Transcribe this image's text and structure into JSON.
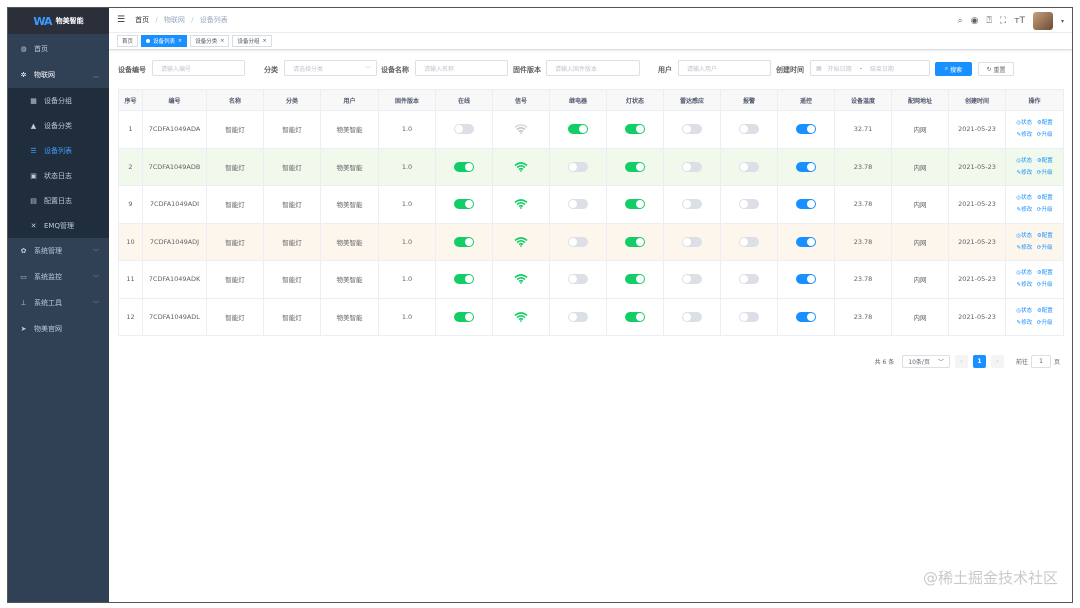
{
  "app": {
    "logo_text": "物美智能"
  },
  "sidebar": {
    "items": [
      {
        "label": "首页",
        "icon": "dashboard-icon"
      },
      {
        "label": "物联网",
        "icon": "gear-icon"
      },
      {
        "label": "系统管理",
        "icon": "gear-icon"
      },
      {
        "label": "系统监控",
        "icon": "monitor-icon"
      },
      {
        "label": "系统工具",
        "icon": "tool-icon"
      },
      {
        "label": "物美官网",
        "icon": "send-icon"
      }
    ],
    "sub_items": [
      {
        "label": "设备分组"
      },
      {
        "label": "设备分类"
      },
      {
        "label": "设备列表"
      },
      {
        "label": "状态日志"
      },
      {
        "label": "配置日志"
      },
      {
        "label": "EMQ管理"
      }
    ]
  },
  "breadcrumb": [
    "首页",
    "物联网",
    "设备列表"
  ],
  "tags": [
    {
      "label": "首页"
    },
    {
      "label": "设备列表"
    },
    {
      "label": "设备分类"
    },
    {
      "label": "设备分组"
    }
  ],
  "search": {
    "device_no_label": "设备编号",
    "device_no_placeholder": "请输入编号",
    "category_label": "分类",
    "category_placeholder": "请选择分类",
    "device_name_label": "设备名称",
    "device_name_placeholder": "请输入名称",
    "firmware_label": "固件版本",
    "firmware_placeholder": "请输入固件版本",
    "user_label": "用户",
    "user_placeholder": "请输入用户",
    "created_label": "创建时间",
    "start_placeholder": "开始日期",
    "range_sep": "-",
    "end_placeholder": "结束日期",
    "search_button": "搜索",
    "reset_button": "重置"
  },
  "table": {
    "headers": [
      "序号",
      "编号",
      "名称",
      "分类",
      "用户",
      "固件版本",
      "在线",
      "信号",
      "继电器",
      "灯状态",
      "雷达感应",
      "报警",
      "遥控",
      "设备温度",
      "配网地址",
      "创建时间",
      "操作"
    ],
    "rows": [
      {
        "seq": "1",
        "no": "7CDFA1049ADA",
        "name": "智能灯",
        "cat": "智能灯",
        "user": "物美智能",
        "fw": "1.0",
        "online": false,
        "signal": "weak",
        "relay": true,
        "light": true,
        "radar": false,
        "alarm": false,
        "remote": true,
        "temp": "32.71",
        "net": "内网",
        "created": "2021-05-23",
        "style": ""
      },
      {
        "seq": "2",
        "no": "7CDFA1049ADB",
        "name": "智能灯",
        "cat": "智能灯",
        "user": "物美智能",
        "fw": "1.0",
        "online": true,
        "signal": "strong",
        "relay": false,
        "light": true,
        "radar": false,
        "alarm": false,
        "remote": true,
        "temp": "23.78",
        "net": "内网",
        "created": "2021-05-23",
        "style": "green"
      },
      {
        "seq": "9",
        "no": "7CDFA1049ADI",
        "name": "智能灯",
        "cat": "智能灯",
        "user": "物美智能",
        "fw": "1.0",
        "online": true,
        "signal": "strong",
        "relay": false,
        "light": true,
        "radar": false,
        "alarm": false,
        "remote": true,
        "temp": "23.78",
        "net": "内网",
        "created": "2021-05-23",
        "style": ""
      },
      {
        "seq": "10",
        "no": "7CDFA1049ADJ",
        "name": "智能灯",
        "cat": "智能灯",
        "user": "物美智能",
        "fw": "1.0",
        "online": true,
        "signal": "strong",
        "relay": false,
        "light": true,
        "radar": false,
        "alarm": false,
        "remote": true,
        "temp": "23.78",
        "net": "内网",
        "created": "2021-05-23",
        "style": "warn"
      },
      {
        "seq": "11",
        "no": "7CDFA1049ADK",
        "name": "智能灯",
        "cat": "智能灯",
        "user": "物美智能",
        "fw": "1.0",
        "online": true,
        "signal": "strong",
        "relay": false,
        "light": true,
        "radar": false,
        "alarm": false,
        "remote": true,
        "temp": "23.78",
        "net": "内网",
        "created": "2021-05-23",
        "style": ""
      },
      {
        "seq": "12",
        "no": "7CDFA1049ADL",
        "name": "智能灯",
        "cat": "智能灯",
        "user": "物美智能",
        "fw": "1.0",
        "online": true,
        "signal": "strong",
        "relay": false,
        "light": true,
        "radar": false,
        "alarm": false,
        "remote": true,
        "temp": "23.78",
        "net": "内网",
        "created": "2021-05-23",
        "style": ""
      }
    ],
    "ops": {
      "status": "状态",
      "config": "配置",
      "edit": "修改",
      "upgrade": "升级"
    }
  },
  "pagination": {
    "total": "共 6 条",
    "page_size": "10条/页",
    "current": "1",
    "goto": "前往",
    "goto_value": "1",
    "page_unit": "页"
  },
  "watermark": "@稀土掘金技术社区",
  "colors": {
    "sidebar": "#304156",
    "primary": "#1890ff",
    "switch_green": "#13ce66"
  }
}
